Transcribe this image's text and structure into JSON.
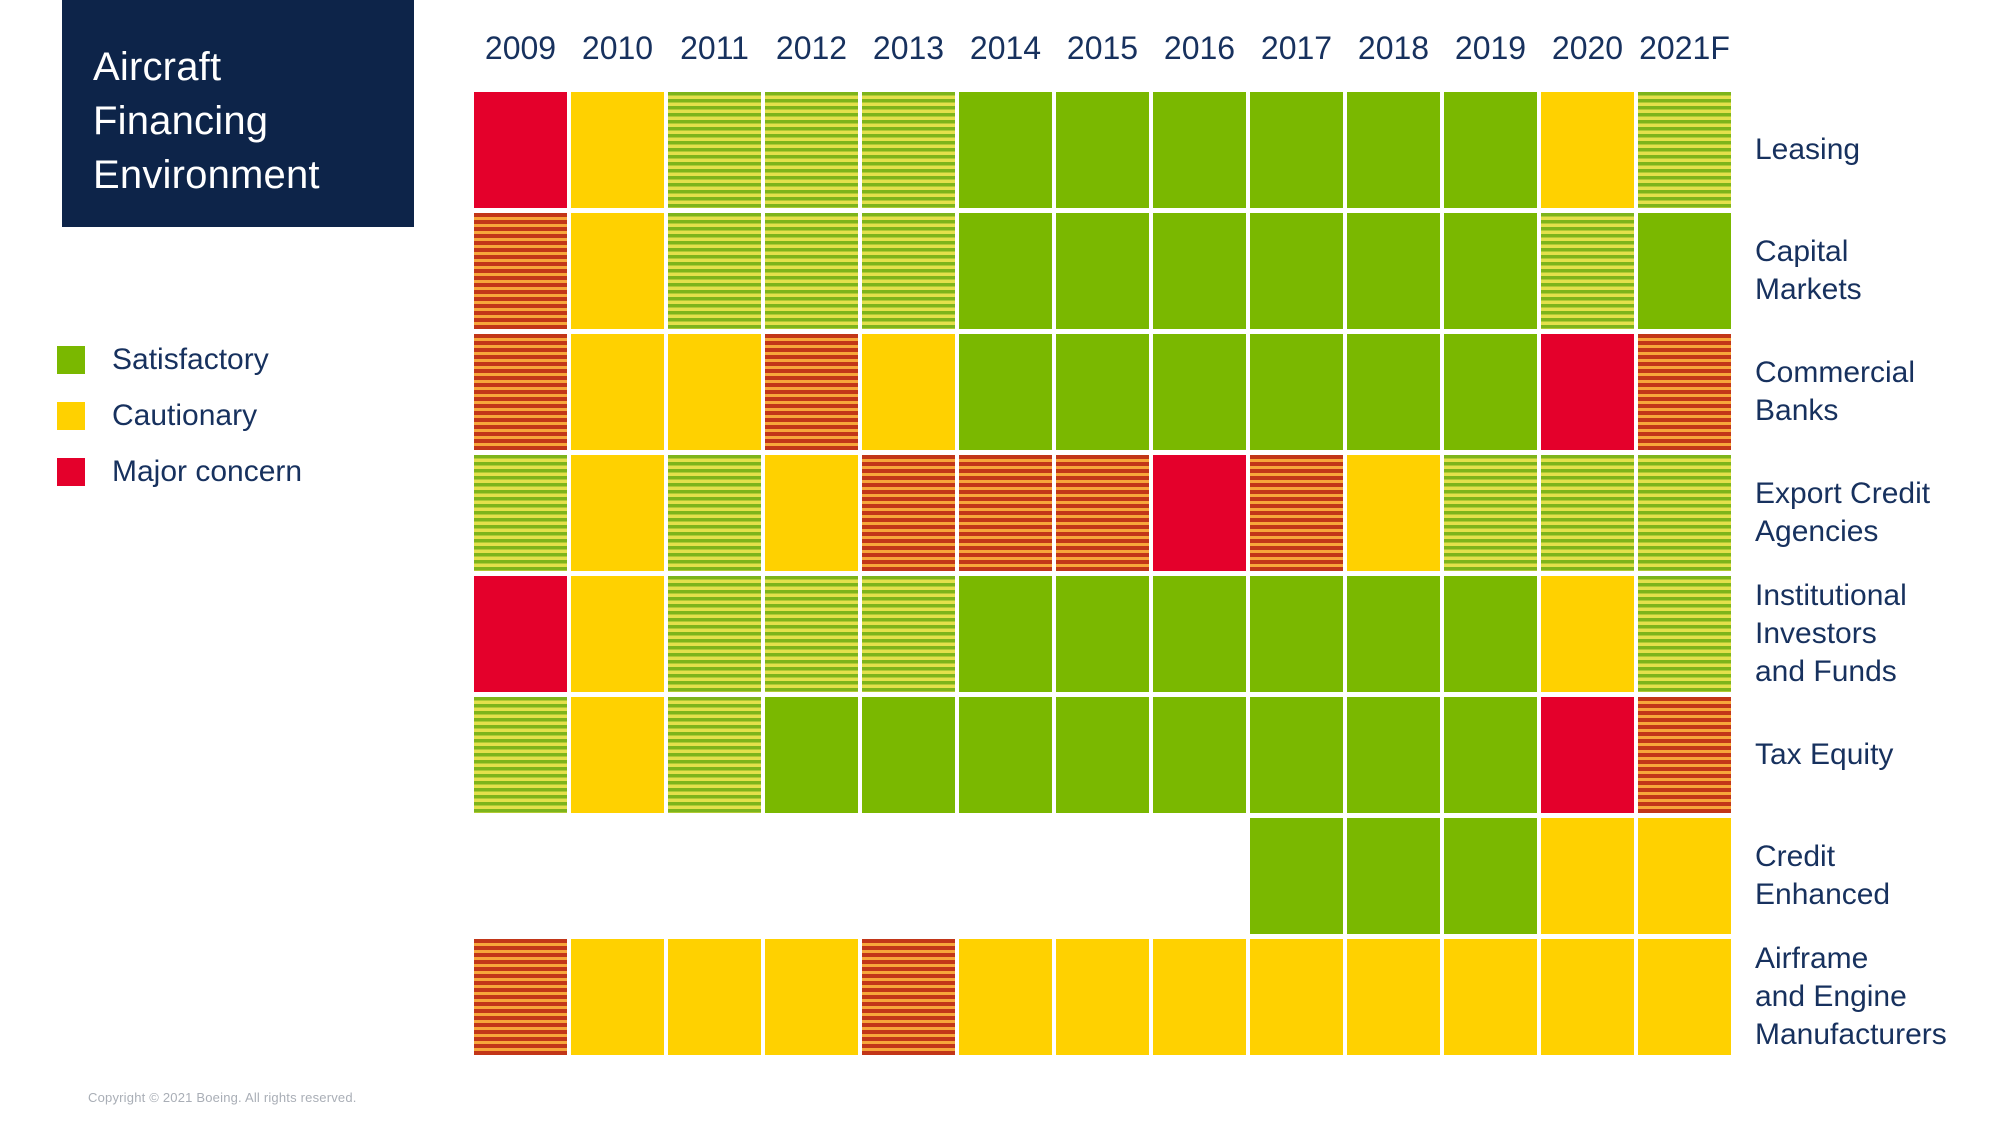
{
  "title": {
    "text": "Aircraft\nFinancing\nEnvironment"
  },
  "legend": {
    "items": [
      {
        "key": "G",
        "label": "Satisfactory",
        "color": "#7ab800"
      },
      {
        "key": "Y",
        "label": "Cautionary",
        "color": "#ffd100"
      },
      {
        "key": "R",
        "label": "Major concern",
        "color": "#e4002b"
      }
    ]
  },
  "footer": {
    "copyright": "Copyright © 2021 Boeing. All rights reserved."
  },
  "colors": {
    "satisfactory": "#7ab800",
    "cautionary": "#ffd100",
    "major_concern": "#e4002b",
    "stripe_green": "#7db41b",
    "stripe_yellow_green": "#e4e04b",
    "stripe_red": "#c23618",
    "stripe_orange": "#f7a63a",
    "navy_box": "#0d2449",
    "text_navy": "#17315e",
    "copyright_gray": "#a9aeb6"
  },
  "chart_data": {
    "type": "heatmap",
    "x": [
      "2009",
      "2010",
      "2011",
      "2012",
      "2013",
      "2014",
      "2015",
      "2016",
      "2017",
      "2018",
      "2019",
      "2020",
      "2021F"
    ],
    "value_legend": {
      "G": "satisfactory (solid green)",
      "Y": "cautionary (solid yellow)",
      "R": "major concern (solid red)",
      "GY": "between satisfactory and cautionary (green/yellow stripes)",
      "RY": "between cautionary and major concern (red/orange stripes)",
      "null": "no data shown"
    },
    "rows": [
      {
        "label": "Leasing",
        "label_display": "Leasing",
        "values": [
          "R",
          "Y",
          "GY",
          "GY",
          "GY",
          "G",
          "G",
          "G",
          "G",
          "G",
          "G",
          "Y",
          "GY"
        ]
      },
      {
        "label": "Capital Markets",
        "label_display": "Capital\nMarkets",
        "values": [
          "RY",
          "Y",
          "GY",
          "GY",
          "GY",
          "G",
          "G",
          "G",
          "G",
          "G",
          "G",
          "GY",
          "G"
        ]
      },
      {
        "label": "Commercial Banks",
        "label_display": "Commercial\nBanks",
        "values": [
          "RY",
          "Y",
          "Y",
          "RY",
          "Y",
          "G",
          "G",
          "G",
          "G",
          "G",
          "G",
          "R",
          "RY"
        ]
      },
      {
        "label": "Export Credit Agencies",
        "label_display": "Export Credit\nAgencies",
        "values": [
          "GY",
          "Y",
          "GY",
          "Y",
          "RY",
          "RY",
          "RY",
          "R",
          "RY",
          "Y",
          "GY",
          "GY",
          "GY"
        ]
      },
      {
        "label": "Institutional Investors and Funds",
        "label_display": "Institutional\nInvestors\nand Funds",
        "values": [
          "R",
          "Y",
          "GY",
          "GY",
          "GY",
          "G",
          "G",
          "G",
          "G",
          "G",
          "G",
          "Y",
          "GY"
        ]
      },
      {
        "label": "Tax Equity",
        "label_display": "Tax Equity",
        "values": [
          "GY",
          "Y",
          "GY",
          "G",
          "G",
          "G",
          "G",
          "G",
          "G",
          "G",
          "G",
          "R",
          "RY"
        ]
      },
      {
        "label": "Credit Enhanced",
        "label_display": "Credit\nEnhanced",
        "values": [
          null,
          null,
          null,
          null,
          null,
          null,
          null,
          null,
          "G",
          "G",
          "G",
          "Y",
          "Y"
        ]
      },
      {
        "label": "Airframe and Engine Manufacturers",
        "label_display": "Airframe\nand Engine\nManufacturers",
        "values": [
          "RY",
          "Y",
          "Y",
          "Y",
          "RY",
          "Y",
          "Y",
          "Y",
          "Y",
          "Y",
          "Y",
          "Y",
          "Y"
        ]
      }
    ]
  }
}
